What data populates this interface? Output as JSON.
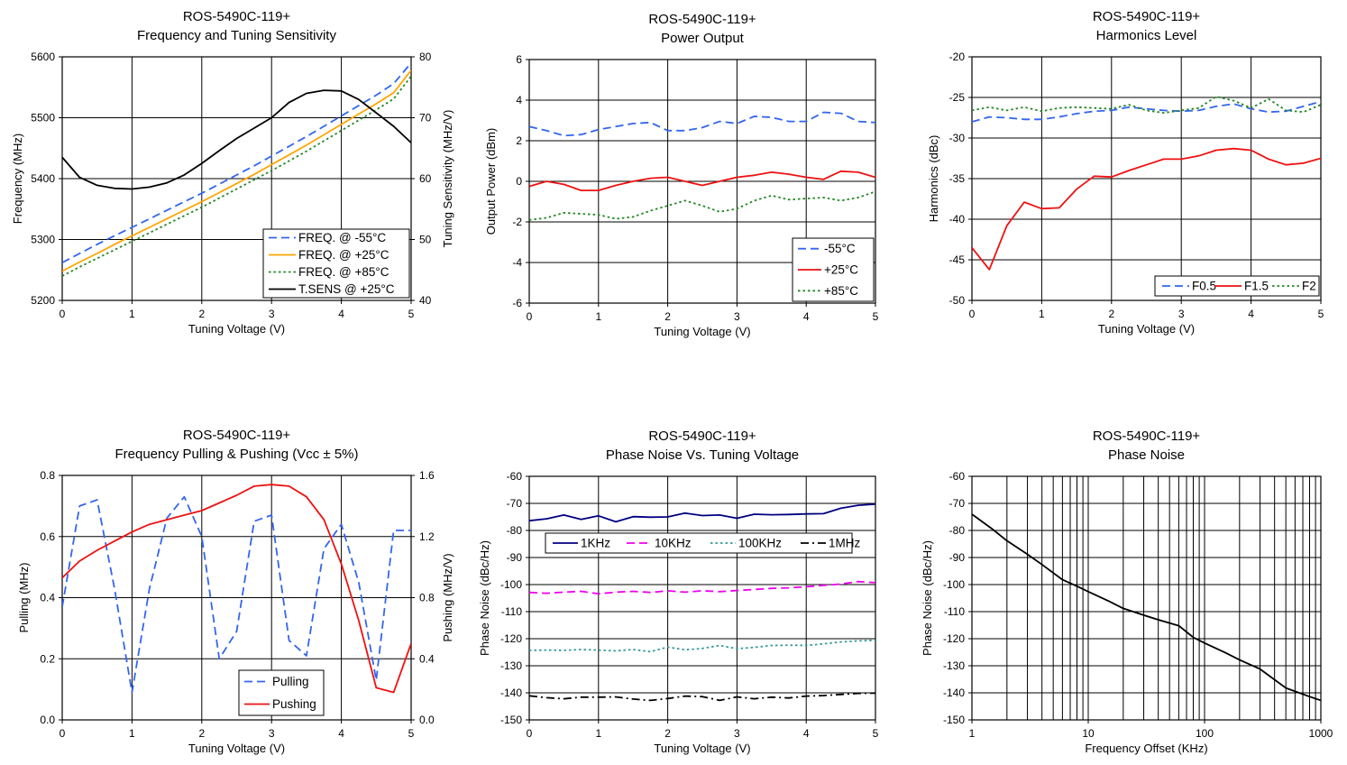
{
  "chart_data": [
    {
      "type": "line",
      "title": "ROS-5490C-119+",
      "subtitle": "Frequency and Tuning Sensitivity",
      "xlabel": "Tuning Voltage (V)",
      "ylabel": "Frequency (MHz)",
      "y2label": "Tuning Sensitivity (MHz/V)",
      "xlim": [
        0,
        5
      ],
      "ylim": [
        5200,
        5600
      ],
      "y2lim": [
        40,
        80
      ],
      "xticks": [
        "0",
        "1",
        "2",
        "3",
        "4",
        "5"
      ],
      "yticks": [
        "5200",
        "5300",
        "5400",
        "5500",
        "5600"
      ],
      "y2ticks": [
        "40",
        "50",
        "60",
        "70",
        "80"
      ],
      "grid": true,
      "legend_position": "bottom-right",
      "x": [
        0,
        0.25,
        0.5,
        0.75,
        1,
        1.25,
        1.5,
        1.75,
        2,
        2.25,
        2.5,
        2.75,
        3,
        3.25,
        3.5,
        3.75,
        4,
        4.25,
        4.5,
        4.75,
        5
      ],
      "series": [
        {
          "name": "FREQ. @ -55°C",
          "axis": "left",
          "color": "#3366ee",
          "dash": "dash",
          "values": [
            5262,
            5277,
            5292,
            5306,
            5320,
            5334,
            5348,
            5362,
            5376,
            5391,
            5406,
            5421,
            5437,
            5453,
            5469,
            5486,
            5503,
            5520,
            5537,
            5556,
            5590
          ]
        },
        {
          "name": "FREQ. @ +25°C",
          "axis": "left",
          "color": "#ffa500",
          "dash": "solid",
          "values": [
            5248,
            5263,
            5277,
            5292,
            5306,
            5320,
            5334,
            5348,
            5362,
            5377,
            5392,
            5407,
            5423,
            5439,
            5455,
            5472,
            5489,
            5506,
            5523,
            5541,
            5578
          ]
        },
        {
          "name": "FREQ. @ +85°C",
          "axis": "left",
          "color": "#228822",
          "dash": "dot",
          "values": [
            5240,
            5255,
            5269,
            5283,
            5297,
            5311,
            5325,
            5339,
            5353,
            5368,
            5383,
            5398,
            5413,
            5429,
            5445,
            5462,
            5479,
            5496,
            5513,
            5531,
            5568
          ]
        },
        {
          "name": "T.SENS @ +25°C",
          "axis": "right",
          "color": "#000000",
          "dash": "solid",
          "values": [
            63.5,
            60.2,
            58.9,
            58.4,
            58.3,
            58.6,
            59.3,
            60.6,
            62.5,
            64.6,
            66.6,
            68.3,
            70.0,
            72.5,
            74.0,
            74.5,
            74.4,
            73.0,
            70.8,
            68.6,
            65.9
          ]
        }
      ]
    },
    {
      "type": "line",
      "title": "ROS-5490C-119+",
      "subtitle": "Power Output",
      "xlabel": "Tuning Voltage (V)",
      "ylabel": "Output Power (dBm)",
      "xlim": [
        0,
        5
      ],
      "ylim": [
        -6,
        6
      ],
      "xticks": [
        "0",
        "1",
        "2",
        "3",
        "4",
        "5"
      ],
      "yticks": [
        "-6",
        "-4",
        "-2",
        "0",
        "2",
        "4",
        "6"
      ],
      "grid": true,
      "legend_position": "bottom-right",
      "x": [
        0,
        0.25,
        0.5,
        0.75,
        1,
        1.25,
        1.5,
        1.75,
        2,
        2.25,
        2.5,
        2.75,
        3,
        3.25,
        3.5,
        3.75,
        4,
        4.25,
        4.5,
        4.75,
        5
      ],
      "series": [
        {
          "name": "-55°C",
          "color": "#3366ee",
          "dash": "dash",
          "values": [
            2.7,
            2.5,
            2.25,
            2.3,
            2.55,
            2.7,
            2.85,
            2.9,
            2.5,
            2.5,
            2.65,
            2.95,
            2.85,
            3.2,
            3.15,
            2.95,
            2.95,
            3.4,
            3.35,
            2.95,
            2.9
          ]
        },
        {
          "name": "+25°C",
          "color": "#ee1111",
          "dash": "solid",
          "values": [
            -0.25,
            0.0,
            -0.15,
            -0.45,
            -0.45,
            -0.2,
            0.0,
            0.15,
            0.2,
            0.0,
            -0.2,
            0.0,
            0.2,
            0.3,
            0.45,
            0.35,
            0.2,
            0.1,
            0.5,
            0.45,
            0.2
          ]
        },
        {
          "name": "+85°C",
          "color": "#228822",
          "dash": "dot",
          "values": [
            -1.9,
            -1.8,
            -1.55,
            -1.6,
            -1.65,
            -1.85,
            -1.75,
            -1.45,
            -1.2,
            -0.95,
            -1.2,
            -1.5,
            -1.35,
            -0.95,
            -0.7,
            -0.9,
            -0.85,
            -0.8,
            -0.95,
            -0.8,
            -0.5
          ]
        }
      ]
    },
    {
      "type": "line",
      "title": "ROS-5490C-119+",
      "subtitle": "Harmonics Level",
      "xlabel": "Tuning Voltage (V)",
      "ylabel": "Harmonics (dBc)",
      "xlim": [
        0,
        5
      ],
      "ylim": [
        -50,
        -20
      ],
      "xticks": [
        "0",
        "1",
        "2",
        "3",
        "4",
        "5"
      ],
      "yticks": [
        "-50",
        "-45",
        "-40",
        "-35",
        "-30",
        "-25",
        "-20"
      ],
      "grid": true,
      "legend_position": "bottom-right",
      "x": [
        0,
        0.25,
        0.5,
        0.75,
        1,
        1.25,
        1.5,
        1.75,
        2,
        2.25,
        2.5,
        2.75,
        3,
        3.25,
        3.5,
        3.75,
        4,
        4.25,
        4.5,
        4.75,
        5
      ],
      "series": [
        {
          "name": "F0.5",
          "color": "#3366ee",
          "dash": "dash",
          "values": [
            -28.0,
            -27.4,
            -27.5,
            -27.7,
            -27.7,
            -27.4,
            -27.0,
            -26.7,
            -26.6,
            -26.2,
            -26.4,
            -26.6,
            -26.7,
            -26.6,
            -26.1,
            -25.8,
            -26.4,
            -26.8,
            -26.7,
            -26.1,
            -25.5
          ]
        },
        {
          "name": "F1.5",
          "color": "#ee1111",
          "dash": "solid",
          "values": [
            -43.5,
            -46.2,
            -40.8,
            -37.9,
            -38.7,
            -38.6,
            -36.3,
            -34.7,
            -34.8,
            -34.0,
            -33.3,
            -32.6,
            -32.6,
            -32.2,
            -31.5,
            -31.3,
            -31.5,
            -32.6,
            -33.3,
            -33.1,
            -32.5
          ]
        },
        {
          "name": "F2",
          "color": "#228822",
          "dash": "dot",
          "values": [
            -26.6,
            -26.2,
            -26.6,
            -26.2,
            -26.7,
            -26.3,
            -26.2,
            -26.3,
            -26.4,
            -25.9,
            -26.6,
            -26.9,
            -26.6,
            -26.3,
            -24.9,
            -25.4,
            -26.3,
            -25.2,
            -26.6,
            -26.8,
            -25.9
          ]
        }
      ]
    },
    {
      "type": "line",
      "title": "ROS-5490C-119+",
      "subtitle": "Frequency Pulling & Pushing (Vcc ± 5%)",
      "xlabel": "Tuning Voltage (V)",
      "ylabel": "Pulling (MHz)",
      "y2label": "Pushing (MHz/V)",
      "xlim": [
        0,
        5
      ],
      "ylim": [
        0,
        0.8
      ],
      "y2lim": [
        0,
        1.6
      ],
      "xticks": [
        "0",
        "1",
        "2",
        "3",
        "4",
        "5"
      ],
      "yticks": [
        "0.0",
        "0.2",
        "0.4",
        "0.6",
        "0.8"
      ],
      "y2ticks": [
        "0.0",
        "0.4",
        "0.8",
        "1.2",
        "1.6"
      ],
      "grid": true,
      "legend_position": "bottom-center",
      "x": [
        0,
        0.25,
        0.5,
        0.75,
        1,
        1.25,
        1.5,
        1.75,
        2,
        2.25,
        2.5,
        2.75,
        3,
        3.25,
        3.5,
        3.75,
        4,
        4.25,
        4.5,
        4.75,
        5
      ],
      "series": [
        {
          "name": "Pulling",
          "axis": "left",
          "color": "#3366ee",
          "dash": "dash",
          "values": [
            0.37,
            0.7,
            0.72,
            0.43,
            0.09,
            0.43,
            0.66,
            0.73,
            0.6,
            0.2,
            0.29,
            0.65,
            0.67,
            0.26,
            0.21,
            0.56,
            0.64,
            0.45,
            0.13,
            0.62,
            0.62
          ]
        },
        {
          "name": "Pushing",
          "axis": "right",
          "color": "#ee1111",
          "dash": "solid",
          "values": [
            0.93,
            1.04,
            1.11,
            1.17,
            1.23,
            1.28,
            1.31,
            1.34,
            1.37,
            1.42,
            1.47,
            1.53,
            1.54,
            1.53,
            1.46,
            1.31,
            1.02,
            0.65,
            0.21,
            0.18,
            0.5
          ]
        }
      ]
    },
    {
      "type": "line",
      "title": "ROS-5490C-119+",
      "subtitle": "Phase Noise Vs. Tuning Voltage",
      "xlabel": "Tuning Voltage (V)",
      "ylabel": "Phase Noise (dBc/Hz)",
      "xlim": [
        0,
        5
      ],
      "ylim": [
        -150,
        -60
      ],
      "xticks": [
        "0",
        "1",
        "2",
        "3",
        "4",
        "5"
      ],
      "yticks": [
        "-150",
        "-140",
        "-130",
        "-120",
        "-110",
        "-100",
        "-90",
        "-80",
        "-70",
        "-60"
      ],
      "grid": true,
      "legend_position": "top",
      "x": [
        0,
        0.25,
        0.5,
        0.75,
        1,
        1.25,
        1.5,
        1.75,
        2,
        2.25,
        2.5,
        2.75,
        3,
        3.25,
        3.5,
        3.75,
        4,
        4.25,
        4.5,
        4.75,
        5
      ],
      "series": [
        {
          "name": "1KHz",
          "color": "#000080",
          "dash": "solid",
          "values": [
            -76.4,
            -75.7,
            -74.3,
            -75.9,
            -74.6,
            -76.8,
            -74.9,
            -75.1,
            -75.0,
            -73.6,
            -74.5,
            -74.3,
            -75.5,
            -74.0,
            -74.2,
            -74.1,
            -73.9,
            -73.8,
            -71.8,
            -70.7,
            -70.3
          ]
        },
        {
          "name": "10KHz",
          "color": "#ee00ee",
          "dash": "dash",
          "values": [
            -102.9,
            -103.2,
            -102.8,
            -102.5,
            -103.4,
            -102.8,
            -102.5,
            -102.9,
            -102.3,
            -102.8,
            -102.3,
            -102.6,
            -102.2,
            -101.8,
            -101.4,
            -101.2,
            -100.8,
            -100.3,
            -99.8,
            -98.9,
            -99.3
          ]
        },
        {
          "name": "100KHz",
          "color": "#339999",
          "dash": "dot",
          "values": [
            -124.3,
            -124.2,
            -124.3,
            -124.0,
            -124.2,
            -124.5,
            -124.0,
            -124.8,
            -123.1,
            -124.1,
            -123.6,
            -122.5,
            -123.7,
            -123.2,
            -122.5,
            -122.4,
            -122.5,
            -121.9,
            -121.2,
            -120.8,
            -120.6
          ]
        },
        {
          "name": "1MHz",
          "color": "#000000",
          "dash": "dashdot",
          "values": [
            -141.1,
            -141.8,
            -142.2,
            -141.6,
            -141.6,
            -141.5,
            -142.3,
            -142.8,
            -142.1,
            -141.2,
            -141.4,
            -142.8,
            -141.5,
            -142.2,
            -141.6,
            -141.9,
            -141.2,
            -141.0,
            -140.6,
            -140.2,
            -140.1
          ]
        }
      ]
    },
    {
      "type": "line",
      "title": "ROS-5490C-119+",
      "subtitle": "Phase Noise",
      "xlabel": "Frequency Offset (KHz)",
      "ylabel": "Phase Noise (dBc/Hz)",
      "xscale": "log",
      "xlim": [
        1,
        1000
      ],
      "ylim": [
        -150,
        -60
      ],
      "xticks": [
        "1",
        "10",
        "100",
        "1000"
      ],
      "yticks": [
        "-150",
        "-140",
        "-130",
        "-120",
        "-110",
        "-100",
        "-90",
        "-80",
        "-70",
        "-60"
      ],
      "grid": true,
      "x": [
        1,
        1.5,
        2,
        3,
        4,
        6,
        8,
        10,
        15,
        20,
        30,
        40,
        60,
        80,
        100,
        150,
        200,
        300,
        500,
        800,
        1000
      ],
      "series": [
        {
          "name": "",
          "color": "#000000",
          "dash": "solid",
          "values": [
            -74.0,
            -79.5,
            -83.8,
            -88.8,
            -92.6,
            -98.2,
            -100.6,
            -102.6,
            -106.1,
            -108.8,
            -111.3,
            -113.0,
            -115.2,
            -119.5,
            -121.6,
            -125.1,
            -127.8,
            -131.2,
            -138.2,
            -141.4,
            -142.8
          ]
        }
      ]
    }
  ]
}
